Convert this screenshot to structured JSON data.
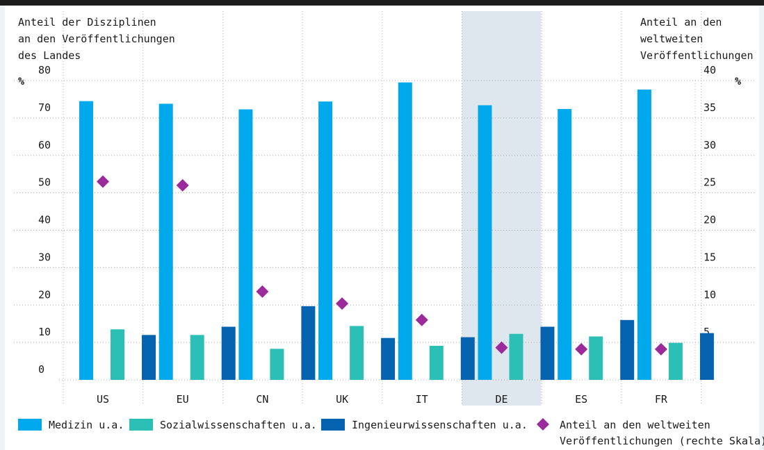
{
  "chart_data": {
    "type": "bar",
    "left_axis_title": [
      "Anteil der Disziplinen",
      "an den Veröffentlichungen",
      "des Landes"
    ],
    "right_axis_title": [
      "Anteil an den",
      "weltweiten",
      "Veröffentlichungen"
    ],
    "left_unit": "%",
    "right_unit": "%",
    "categories": [
      "US",
      "EU",
      "CN",
      "UK",
      "IT",
      "DE",
      "ES",
      "FR"
    ],
    "highlighted_category": "DE",
    "ylim_left": [
      0,
      80
    ],
    "ylim_right": [
      0,
      40
    ],
    "left_ticks": [
      0,
      10,
      20,
      30,
      40,
      50,
      60,
      70,
      80
    ],
    "right_ticks": [
      0,
      5,
      10,
      15,
      20,
      25,
      30,
      35,
      40
    ],
    "grid": true,
    "legend_position": "bottom",
    "series": [
      {
        "name": "Medizin u.a.",
        "axis": "left",
        "kind": "bar",
        "color": "#00a9ec",
        "values": [
          74.5,
          73.8,
          72.3,
          74.4,
          79.5,
          73.4,
          72.4,
          77.6
        ]
      },
      {
        "name": "Sozialwissenschaften u.a.",
        "axis": "left",
        "kind": "bar",
        "color": "#2cbfb5",
        "values": [
          13.5,
          12.0,
          8.3,
          14.4,
          9.1,
          12.3,
          11.6,
          9.9
        ]
      },
      {
        "name": "Ingenieurwissenschaften u.a.",
        "axis": "left",
        "kind": "bar",
        "color": "#0563b0",
        "values": [
          12.0,
          14.2,
          19.7,
          11.2,
          11.4,
          14.2,
          16.0,
          12.5
        ]
      },
      {
        "name": "Anteil an den weltweiten Veröffentlichungen (rechte Skala)",
        "axis": "right",
        "kind": "diamond",
        "color": "#9b2a9a",
        "values": [
          26.5,
          26.0,
          11.8,
          10.2,
          8.0,
          4.3,
          4.1,
          4.1
        ]
      }
    ]
  }
}
